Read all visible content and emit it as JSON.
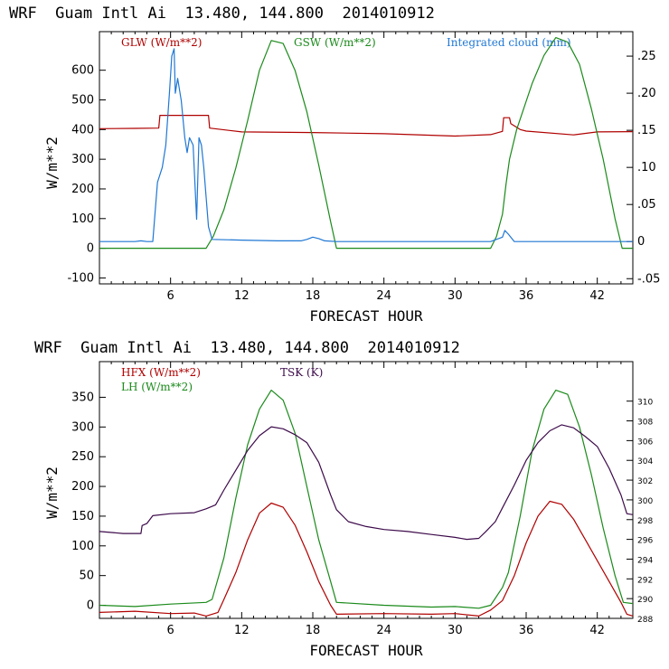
{
  "chart_data": [
    {
      "type": "line",
      "title": "WRF  Guam Intl Ai  13.480, 144.800  2014010912",
      "xlabel": "FORECAST HOUR",
      "ylabel": "W/m**2",
      "xlim": [
        0,
        45
      ],
      "ylim": [
        -120,
        730
      ],
      "x_ticks": [
        "6",
        "12",
        "18",
        "24",
        "30",
        "36",
        "42"
      ],
      "y_ticks": [
        "-100",
        "0",
        "100",
        "200",
        "300",
        "400",
        "500",
        "600"
      ],
      "right_axis": {
        "ylim": [
          -0.057,
          0.283
        ],
        "ticks": [
          "-.05",
          "0",
          ".05",
          ".10",
          ".15",
          ".20",
          ".25"
        ]
      },
      "series": [
        {
          "name": "GLW (W/m**2)",
          "color": "#b00000",
          "axis": "left",
          "points": [
            [
              0,
              403
            ],
            [
              3,
              404
            ],
            [
              5,
              405
            ],
            [
              5.1,
              448
            ],
            [
              9.2,
              448
            ],
            [
              9.3,
              405
            ],
            [
              12,
              392
            ],
            [
              18,
              390
            ],
            [
              24,
              386
            ],
            [
              30,
              378
            ],
            [
              33,
              383
            ],
            [
              34,
              394
            ],
            [
              34.1,
              440
            ],
            [
              34.6,
              440
            ],
            [
              34.7,
              420
            ],
            [
              35.5,
              400
            ],
            [
              36,
              395
            ],
            [
              40,
              382
            ],
            [
              42,
              392
            ],
            [
              45,
              393
            ]
          ]
        },
        {
          "name": "GSW (W/m**2)",
          "color": "#1a8a1a",
          "axis": "left",
          "points": [
            [
              0,
              0
            ],
            [
              9,
              0
            ],
            [
              9.6,
              40
            ],
            [
              10.5,
              130
            ],
            [
              11.5,
              270
            ],
            [
              12.5,
              430
            ],
            [
              13.5,
              600
            ],
            [
              14.5,
              700
            ],
            [
              15.5,
              690
            ],
            [
              16.5,
              600
            ],
            [
              17.5,
              460
            ],
            [
              18.5,
              280
            ],
            [
              19.5,
              90
            ],
            [
              20,
              0
            ],
            [
              33,
              0
            ],
            [
              33.5,
              40
            ],
            [
              34,
              115
            ],
            [
              34.3,
              215
            ],
            [
              34.6,
              300
            ],
            [
              35.2,
              400
            ],
            [
              36.5,
              555
            ],
            [
              37.5,
              650
            ],
            [
              38.5,
              710
            ],
            [
              39.5,
              695
            ],
            [
              40.5,
              620
            ],
            [
              41.5,
              470
            ],
            [
              42.5,
              300
            ],
            [
              43.5,
              100
            ],
            [
              44.1,
              0
            ],
            [
              45,
              0
            ]
          ]
        },
        {
          "name": "Integrated cloud (mm)",
          "color": "#1f77d4",
          "axis": "right",
          "points": [
            [
              0,
              0
            ],
            [
              3,
              0
            ],
            [
              3.5,
              0.001
            ],
            [
              4,
              0
            ],
            [
              4.5,
              0
            ],
            [
              4.6,
              0.02
            ],
            [
              4.9,
              0.08
            ],
            [
              5.3,
              0.1
            ],
            [
              5.6,
              0.13
            ],
            [
              5.9,
              0.2
            ],
            [
              6.1,
              0.25
            ],
            [
              6.3,
              0.26
            ],
            [
              6.4,
              0.2
            ],
            [
              6.6,
              0.22
            ],
            [
              6.9,
              0.19
            ],
            [
              7.2,
              0.14
            ],
            [
              7.4,
              0.12
            ],
            [
              7.6,
              0.14
            ],
            [
              7.9,
              0.13
            ],
            [
              8.2,
              0.03
            ],
            [
              8.4,
              0.14
            ],
            [
              8.6,
              0.13
            ],
            [
              8.8,
              0.1
            ],
            [
              9.0,
              0.06
            ],
            [
              9.2,
              0.02
            ],
            [
              9.5,
              0.003
            ],
            [
              12,
              0.002
            ],
            [
              15,
              0.001
            ],
            [
              17,
              0.001
            ],
            [
              17.5,
              0.003
            ],
            [
              18,
              0.006
            ],
            [
              18.5,
              0.004
            ],
            [
              19,
              0.001
            ],
            [
              20,
              0
            ],
            [
              33,
              0
            ],
            [
              34,
              0.006
            ],
            [
              34.2,
              0.015
            ],
            [
              34.5,
              0.01
            ],
            [
              35,
              0
            ],
            [
              45,
              0
            ]
          ]
        }
      ],
      "legend": [
        "GLW (W/m**2)",
        "GSW (W/m**2)",
        "Integrated cloud (mm)"
      ]
    },
    {
      "type": "line",
      "title": "WRF  Guam Intl Ai  13.480, 144.800  2014010912",
      "xlabel": "FORECAST HOUR",
      "ylabel": "W/m**2",
      "xlim": [
        0,
        45
      ],
      "ylim": [
        -22,
        410
      ],
      "x_ticks": [
        "6",
        "12",
        "18",
        "24",
        "30",
        "36",
        "42"
      ],
      "y_ticks": [
        "0",
        "50",
        "100",
        "150",
        "200",
        "250",
        "300",
        "350"
      ],
      "right_axis": {
        "ylim": [
          288,
          314
        ],
        "ticks": [
          "288",
          "290",
          "292",
          "294",
          "296",
          "298",
          "300",
          "302",
          "304",
          "306",
          "308",
          "310"
        ]
      },
      "series": [
        {
          "name": "HFX (W/m**2)",
          "color": "#b00000",
          "axis": "left",
          "points": [
            [
              0,
              -12
            ],
            [
              3,
              -10
            ],
            [
              6,
              -14
            ],
            [
              8,
              -13
            ],
            [
              9,
              -18
            ],
            [
              10,
              -12
            ],
            [
              10.5,
              10
            ],
            [
              11.5,
              55
            ],
            [
              12.5,
              110
            ],
            [
              13.5,
              155
            ],
            [
              14.5,
              172
            ],
            [
              15.5,
              165
            ],
            [
              16.5,
              135
            ],
            [
              17.5,
              90
            ],
            [
              18.5,
              40
            ],
            [
              19.5,
              0
            ],
            [
              20,
              -15
            ],
            [
              24,
              -14
            ],
            [
              28,
              -15
            ],
            [
              30,
              -14
            ],
            [
              32,
              -18
            ],
            [
              33,
              -8
            ],
            [
              34,
              8
            ],
            [
              35,
              50
            ],
            [
              36,
              105
            ],
            [
              37,
              150
            ],
            [
              38,
              175
            ],
            [
              39,
              170
            ],
            [
              40,
              145
            ],
            [
              41,
              110
            ],
            [
              42,
              75
            ],
            [
              43,
              40
            ],
            [
              44,
              5
            ],
            [
              44.5,
              -15
            ],
            [
              45,
              -18
            ]
          ]
        },
        {
          "name": "LH (W/m**2)",
          "color": "#1a8a1a",
          "axis": "left",
          "points": [
            [
              0,
              0
            ],
            [
              3,
              -2
            ],
            [
              6,
              2
            ],
            [
              9,
              5
            ],
            [
              9.5,
              10
            ],
            [
              10.5,
              80
            ],
            [
              11.5,
              180
            ],
            [
              12.5,
              270
            ],
            [
              13.5,
              330
            ],
            [
              14.5,
              362
            ],
            [
              15.5,
              345
            ],
            [
              16.5,
              290
            ],
            [
              17.5,
              200
            ],
            [
              18.5,
              110
            ],
            [
              19.5,
              40
            ],
            [
              20,
              5
            ],
            [
              24,
              0
            ],
            [
              28,
              -3
            ],
            [
              30,
              -2
            ],
            [
              32,
              -5
            ],
            [
              33,
              0
            ],
            [
              34,
              30
            ],
            [
              34.5,
              55
            ],
            [
              35.5,
              150
            ],
            [
              36.5,
              260
            ],
            [
              37.5,
              330
            ],
            [
              38.5,
              362
            ],
            [
              39.5,
              355
            ],
            [
              40.5,
              300
            ],
            [
              41.5,
              220
            ],
            [
              42.5,
              130
            ],
            [
              43.5,
              50
            ],
            [
              44.2,
              5
            ],
            [
              45,
              3
            ]
          ]
        },
        {
          "name": "TSK (K)",
          "color": "#3c0a4a",
          "axis": "right",
          "points": [
            [
              0,
              296.8
            ],
            [
              2,
              296.6
            ],
            [
              3.5,
              296.6
            ],
            [
              3.6,
              297.4
            ],
            [
              4,
              297.6
            ],
            [
              4.5,
              298.4
            ],
            [
              6,
              298.6
            ],
            [
              8,
              298.7
            ],
            [
              9,
              299.1
            ],
            [
              9.8,
              299.5
            ],
            [
              10.5,
              301.0
            ],
            [
              11.5,
              303.0
            ],
            [
              12.5,
              305.0
            ],
            [
              13.5,
              306.5
            ],
            [
              14.5,
              307.4
            ],
            [
              15.5,
              307.2
            ],
            [
              16.5,
              306.6
            ],
            [
              17.5,
              305.8
            ],
            [
              18.5,
              303.8
            ],
            [
              19.5,
              300.5
            ],
            [
              20,
              299.0
            ],
            [
              21,
              297.8
            ],
            [
              22.5,
              297.3
            ],
            [
              24,
              297.0
            ],
            [
              26,
              296.8
            ],
            [
              28,
              296.5
            ],
            [
              30,
              296.2
            ],
            [
              31,
              296.0
            ],
            [
              32,
              296.1
            ],
            [
              32.6,
              296.8
            ],
            [
              33.4,
              297.8
            ],
            [
              34,
              299.2
            ],
            [
              35,
              301.5
            ],
            [
              36,
              304.0
            ],
            [
              37,
              305.8
            ],
            [
              38,
              307.0
            ],
            [
              39,
              307.6
            ],
            [
              40,
              307.3
            ],
            [
              41,
              306.4
            ],
            [
              42,
              305.4
            ],
            [
              43,
              303.2
            ],
            [
              44,
              300.5
            ],
            [
              44.5,
              298.6
            ],
            [
              45,
              298.5
            ]
          ]
        }
      ],
      "legend": [
        "HFX (W/m**2)",
        "LH (W/m**2)",
        "TSK (K)"
      ]
    }
  ]
}
